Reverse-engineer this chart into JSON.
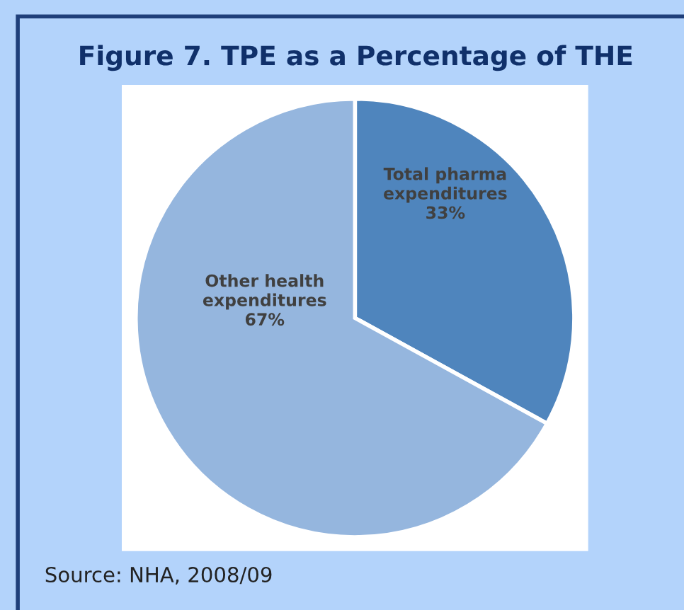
{
  "chart_data": {
    "type": "pie",
    "title": "Figure 7. TPE as a Percentage of THE",
    "categories": [
      "Total pharma expenditures",
      "Other health expenditures"
    ],
    "values": [
      33,
      67
    ],
    "value_labels": [
      "33%",
      "67%"
    ],
    "colors": [
      "#4f85bd",
      "#95b6de"
    ],
    "annotations": [
      "Source: NHA, 2008/09"
    ],
    "legend": false
  }
}
